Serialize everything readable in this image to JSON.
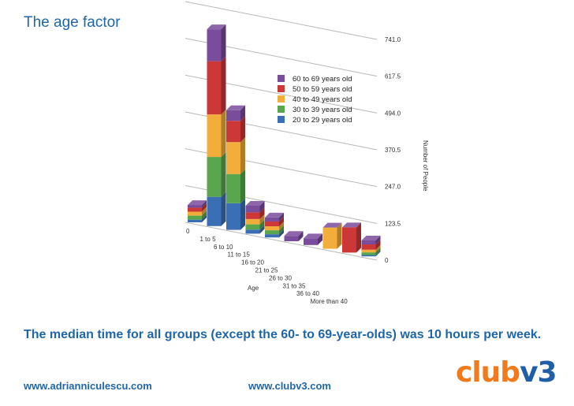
{
  "slide": {
    "title": "The age factor",
    "caption": "The median time for all groups (except the 60- to 69-year-olds) was 10 hours per week.",
    "footer_left": "www.adrianniculescu.com",
    "footer_center": "www.clubv3.com",
    "logo": "clubv3"
  },
  "chart_data": {
    "type": "bar",
    "stacked": true,
    "projection": "3d",
    "xlabel": "Age",
    "ylabel": "Number of People",
    "ylim": [
      0,
      741.0
    ],
    "y_ticks": [
      "0",
      "123.5",
      "247.0",
      "370.5",
      "494.0",
      "617.5",
      "741.0"
    ],
    "categories": [
      "0",
      "1 to 5",
      "6 to 10",
      "11 to 15",
      "16 to 20",
      "21 to 25",
      "26 to 30",
      "31 to 35",
      "36 to 40",
      "More than 40"
    ],
    "series": [
      {
        "name": "20 to 29 years old",
        "color": "#3a6fb5",
        "values": [
          10,
          110,
          100,
          15,
          12,
          0,
          0,
          0,
          0,
          5
        ]
      },
      {
        "name": "30 to 39 years old",
        "color": "#5aa64e",
        "values": [
          15,
          150,
          110,
          20,
          15,
          0,
          0,
          0,
          0,
          10
        ]
      },
      {
        "name": "40 to 49 years old",
        "color": "#f2ad3a",
        "values": [
          15,
          160,
          120,
          20,
          15,
          0,
          0,
          80,
          0,
          10
        ]
      },
      {
        "name": "50 to 59 years old",
        "color": "#cc3838",
        "values": [
          15,
          200,
          80,
          25,
          18,
          0,
          0,
          0,
          95,
          20
        ]
      },
      {
        "name": "60 to 69 years old",
        "color": "#7a4c9c",
        "values": [
          10,
          120,
          40,
          25,
          15,
          20,
          25,
          0,
          0,
          15
        ]
      }
    ],
    "legend_position": "top-center"
  }
}
